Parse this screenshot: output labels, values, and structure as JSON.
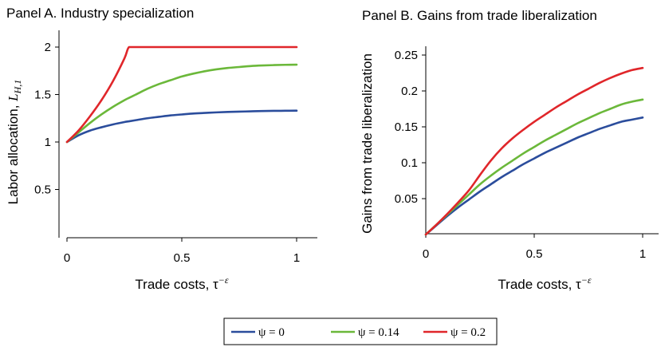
{
  "chart_data": [
    {
      "type": "line",
      "title": "Panel A. Industry specialization",
      "xlabel": "Trade costs, τ",
      "xlabel_superscript": "−ε",
      "ylabel": "Labor allocation, ",
      "ylabel_math": "L",
      "ylabel_sub": "H,1",
      "xlim": [
        0,
        1
      ],
      "ylim": [
        0,
        2.1
      ],
      "xticks": [
        0,
        0.5,
        1
      ],
      "xtick_labels": [
        "0",
        "0.5",
        "1"
      ],
      "yticks": [
        0.5,
        1,
        1.5,
        2
      ],
      "ytick_labels": [
        "0.5",
        "1",
        "1.5",
        "2"
      ],
      "grid": false,
      "x": [
        0,
        0.05,
        0.1,
        0.15,
        0.2,
        0.25,
        0.27,
        0.3,
        0.35,
        0.4,
        0.45,
        0.5,
        0.55,
        0.6,
        0.65,
        0.7,
        0.75,
        0.8,
        0.85,
        0.9,
        0.95,
        1.0
      ],
      "series": [
        {
          "name": "ψ = 0",
          "color": "#2b4d9c",
          "values": [
            1.0,
            1.07,
            1.12,
            1.155,
            1.185,
            1.21,
            1.218,
            1.23,
            1.25,
            1.265,
            1.28,
            1.29,
            1.3,
            1.306,
            1.312,
            1.317,
            1.32,
            1.323,
            1.326,
            1.328,
            1.329,
            1.33
          ]
        },
        {
          "name": "ψ = 0.14",
          "color": "#6bb83a",
          "values": [
            1.0,
            1.1,
            1.2,
            1.29,
            1.37,
            1.44,
            1.465,
            1.5,
            1.56,
            1.61,
            1.65,
            1.69,
            1.72,
            1.745,
            1.765,
            1.78,
            1.79,
            1.8,
            1.806,
            1.81,
            1.813,
            1.815
          ]
        },
        {
          "name": "ψ = 0.2",
          "color": "#e0262a",
          "values": [
            1.0,
            1.12,
            1.27,
            1.44,
            1.64,
            1.88,
            2.0,
            2.0,
            2.0,
            2.0,
            2.0,
            2.0,
            2.0,
            2.0,
            2.0,
            2.0,
            2.0,
            2.0,
            2.0,
            2.0,
            2.0,
            2.0
          ]
        }
      ]
    },
    {
      "type": "line",
      "title": "Panel B. Gains from trade liberalization",
      "xlabel": "Trade costs, τ",
      "xlabel_superscript": "−ε",
      "ylabel": "Gains from trade liberalization",
      "xlim": [
        0,
        1
      ],
      "ylim": [
        0,
        0.26
      ],
      "xticks": [
        0,
        0.5,
        1
      ],
      "xtick_labels": [
        "0",
        "0.5",
        "1"
      ],
      "yticks": [
        0.05,
        0.1,
        0.15,
        0.2,
        0.25
      ],
      "ytick_labels": [
        "0.05",
        "0.1",
        "0.15",
        "0.2",
        "0.25"
      ],
      "grid": false,
      "x": [
        0,
        0.05,
        0.1,
        0.15,
        0.2,
        0.25,
        0.3,
        0.35,
        0.4,
        0.45,
        0.5,
        0.55,
        0.6,
        0.65,
        0.7,
        0.75,
        0.8,
        0.85,
        0.9,
        0.95,
        1.0
      ],
      "series": [
        {
          "name": "ψ = 0",
          "color": "#2b4d9c",
          "values": [
            0.0,
            0.013,
            0.026,
            0.038,
            0.049,
            0.06,
            0.07,
            0.08,
            0.089,
            0.098,
            0.106,
            0.114,
            0.121,
            0.128,
            0.135,
            0.141,
            0.147,
            0.152,
            0.157,
            0.16,
            0.163
          ]
        },
        {
          "name": "ψ = 0.14",
          "color": "#6bb83a",
          "values": [
            0.0,
            0.014,
            0.028,
            0.042,
            0.056,
            0.07,
            0.082,
            0.093,
            0.103,
            0.113,
            0.122,
            0.131,
            0.139,
            0.147,
            0.155,
            0.162,
            0.169,
            0.175,
            0.181,
            0.185,
            0.188
          ]
        },
        {
          "name": "ψ = 0.2",
          "color": "#e0262a",
          "values": [
            0.0,
            0.014,
            0.029,
            0.045,
            0.062,
            0.083,
            0.103,
            0.12,
            0.134,
            0.146,
            0.157,
            0.167,
            0.177,
            0.186,
            0.195,
            0.203,
            0.211,
            0.218,
            0.224,
            0.229,
            0.232
          ]
        }
      ]
    }
  ],
  "legend": {
    "placement": "bottom-center",
    "entries": [
      {
        "label": "ψ = 0",
        "color": "#2b4d9c"
      },
      {
        "label": "ψ = 0.14",
        "color": "#6bb83a"
      },
      {
        "label": "ψ = 0.2",
        "color": "#e0262a"
      }
    ]
  }
}
